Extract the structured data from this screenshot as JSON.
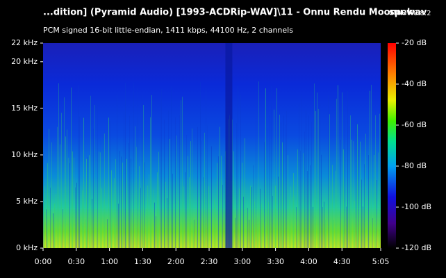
{
  "chart_data": {
    "type": "spectrogram",
    "title": "...dition] (Pyramid Audio) [1993-ACDRip-WAV]\\11 - Onnu Rendu Moonu.wav",
    "app_name": "spek",
    "app_version": "0.8.2",
    "subtitle": "PCM signed 16-bit little-endian, 1411 kbps, 44100 Hz, 2 channels",
    "xlim": [
      0,
      305
    ],
    "xticks": [
      {
        "value": 0,
        "label": "0:00"
      },
      {
        "value": 30,
        "label": "0:30"
      },
      {
        "value": 60,
        "label": "1:00"
      },
      {
        "value": 90,
        "label": "1:30"
      },
      {
        "value": 120,
        "label": "2:00"
      },
      {
        "value": 150,
        "label": "2:30"
      },
      {
        "value": 180,
        "label": "3:00"
      },
      {
        "value": 210,
        "label": "3:30"
      },
      {
        "value": 240,
        "label": "4:00"
      },
      {
        "value": 270,
        "label": "4:30"
      },
      {
        "value": 305,
        "label": "5:05"
      }
    ],
    "ylim": [
      0,
      22
    ],
    "yticks": [
      {
        "value": 0,
        "label": "0 kHz"
      },
      {
        "value": 5,
        "label": "5 kHz"
      },
      {
        "value": 10,
        "label": "10 kHz"
      },
      {
        "value": 15,
        "label": "15 kHz"
      },
      {
        "value": 20,
        "label": "20 kHz"
      },
      {
        "value": 22,
        "label": "22 kHz"
      }
    ],
    "zlim": [
      -120,
      -20
    ],
    "zticks": [
      {
        "value": -20,
        "label": "-20 dB"
      },
      {
        "value": -40,
        "label": "-40 dB"
      },
      {
        "value": -60,
        "label": "-60 dB"
      },
      {
        "value": -80,
        "label": "-80 dB"
      },
      {
        "value": -100,
        "label": "-100 dB"
      },
      {
        "value": -120,
        "label": "-120 dB"
      }
    ]
  }
}
